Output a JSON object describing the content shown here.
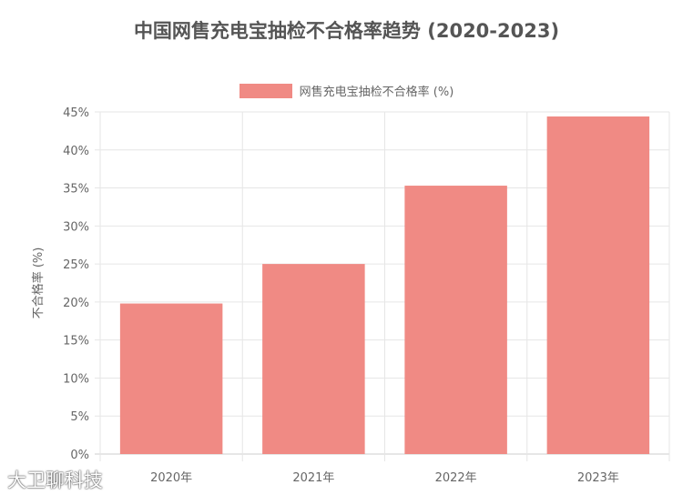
{
  "chart_data": {
    "type": "bar",
    "title": "中国网售充电宝抽检不合格率趋势 (2020-2023)",
    "categories": [
      "2020年",
      "2021年",
      "2022年",
      "2023年"
    ],
    "series": [
      {
        "name": "网售充电宝抽检不合格率 (%)",
        "values": [
          19.8,
          25.0,
          35.3,
          44.4
        ],
        "color": "#f08a84"
      }
    ],
    "xlabel": "",
    "ylabel": "不合格率 (%)",
    "ylim": [
      0,
      45
    ],
    "yticks": [
      "0%",
      "5%",
      "10%",
      "15%",
      "20%",
      "25%",
      "30%",
      "35%",
      "40%",
      "45%"
    ],
    "grid": true,
    "legend": "top"
  },
  "watermark": "大卫聊科技"
}
